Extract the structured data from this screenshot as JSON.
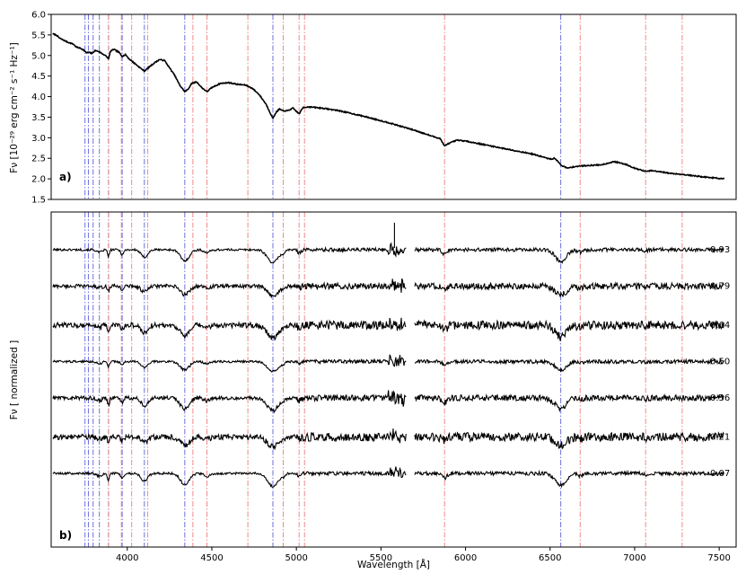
{
  "chart_data": [
    {
      "type": "line",
      "panel_label": "a)",
      "ylabel": "Fν [10⁻²⁹ erg cm⁻² s⁻¹ Hz⁻¹]",
      "xlabel": "",
      "xlim": [
        3550,
        7600
      ],
      "ylim": [
        1.5,
        6.0
      ],
      "x_ticks": [],
      "y_ticks": [
        "1.5",
        "2.0",
        "2.5",
        "3.0",
        "3.5",
        "4.0",
        "4.5",
        "5.0",
        "5.5",
        "6.0"
      ],
      "series": [
        {
          "x": [
            3560,
            3580,
            3600,
            3620,
            3650,
            3680,
            3700,
            3720,
            3740,
            3760,
            3770,
            3790,
            3810,
            3830,
            3850,
            3870,
            3890,
            3900,
            3920,
            3950,
            3970,
            3990,
            4010,
            4040,
            4070,
            4101,
            4130,
            4160,
            4190,
            4220,
            4250,
            4280,
            4310,
            4340,
            4360,
            4380,
            4410,
            4440,
            4471,
            4500,
            4550,
            4600,
            4650,
            4700,
            4740,
            4780,
            4820,
            4861,
            4880,
            4900,
            4920,
            4950,
            4980,
            5016,
            5040,
            5080,
            5150,
            5250,
            5400,
            5550,
            5650,
            5700,
            5800,
            5850,
            5876,
            5900,
            5950,
            6000,
            6100,
            6200,
            6300,
            6400,
            6500,
            6530,
            6563,
            6600,
            6650,
            6700,
            6800,
            6880,
            6950,
            7000,
            7065,
            7100,
            7200,
            7300,
            7400,
            7530
          ],
          "y": [
            5.52,
            5.5,
            5.42,
            5.38,
            5.32,
            5.28,
            5.2,
            5.18,
            5.14,
            5.06,
            5.08,
            5.05,
            5.12,
            5.1,
            5.05,
            5.0,
            4.92,
            5.1,
            5.15,
            5.08,
            4.98,
            5.02,
            4.92,
            4.82,
            4.72,
            4.62,
            4.72,
            4.82,
            4.9,
            4.88,
            4.7,
            4.52,
            4.28,
            4.12,
            4.18,
            4.32,
            4.36,
            4.22,
            4.12,
            4.22,
            4.32,
            4.34,
            4.3,
            4.28,
            4.2,
            4.05,
            3.82,
            3.47,
            3.62,
            3.7,
            3.65,
            3.66,
            3.72,
            3.58,
            3.74,
            3.75,
            3.72,
            3.66,
            3.52,
            3.36,
            3.24,
            3.18,
            3.04,
            2.98,
            2.8,
            2.86,
            2.94,
            2.92,
            2.84,
            2.76,
            2.68,
            2.6,
            2.48,
            2.5,
            2.34,
            2.26,
            2.3,
            2.32,
            2.34,
            2.42,
            2.35,
            2.26,
            2.18,
            2.2,
            2.14,
            2.1,
            2.05,
            2.0
          ]
        }
      ]
    },
    {
      "type": "line",
      "panel_label": "b)",
      "ylabel": "Fν [ normalized ]",
      "xlabel": "Wavelength [Å]",
      "xlim": [
        3550,
        7600
      ],
      "x_ticks": [
        "4000",
        "4500",
        "5000",
        "5500",
        "6000",
        "6500",
        "7000",
        "7500"
      ],
      "gap": [
        5650,
        5700
      ],
      "series": [
        {
          "name": "0.93",
          "offset": 0.93
        },
        {
          "name": "0.79",
          "offset": 0.79
        },
        {
          "name": "0.64",
          "offset": 0.64
        },
        {
          "name": "0.50",
          "offset": 0.5
        },
        {
          "name": "0.36",
          "offset": 0.36
        },
        {
          "name": "0.21",
          "offset": 0.21
        },
        {
          "name": "0.07",
          "offset": 0.07
        }
      ]
    }
  ],
  "reference_lines": {
    "blue_color": "#6f6fdd",
    "red_color": "#ee8a8a",
    "blue": [
      3750,
      3770,
      3798,
      3835,
      3889,
      3970,
      4101,
      4340,
      4861,
      6563
    ],
    "red": [
      3889,
      3965,
      4026,
      4121,
      4388,
      4471,
      4713,
      4922,
      5016,
      5048,
      5876,
      6678,
      7065,
      7281
    ]
  }
}
